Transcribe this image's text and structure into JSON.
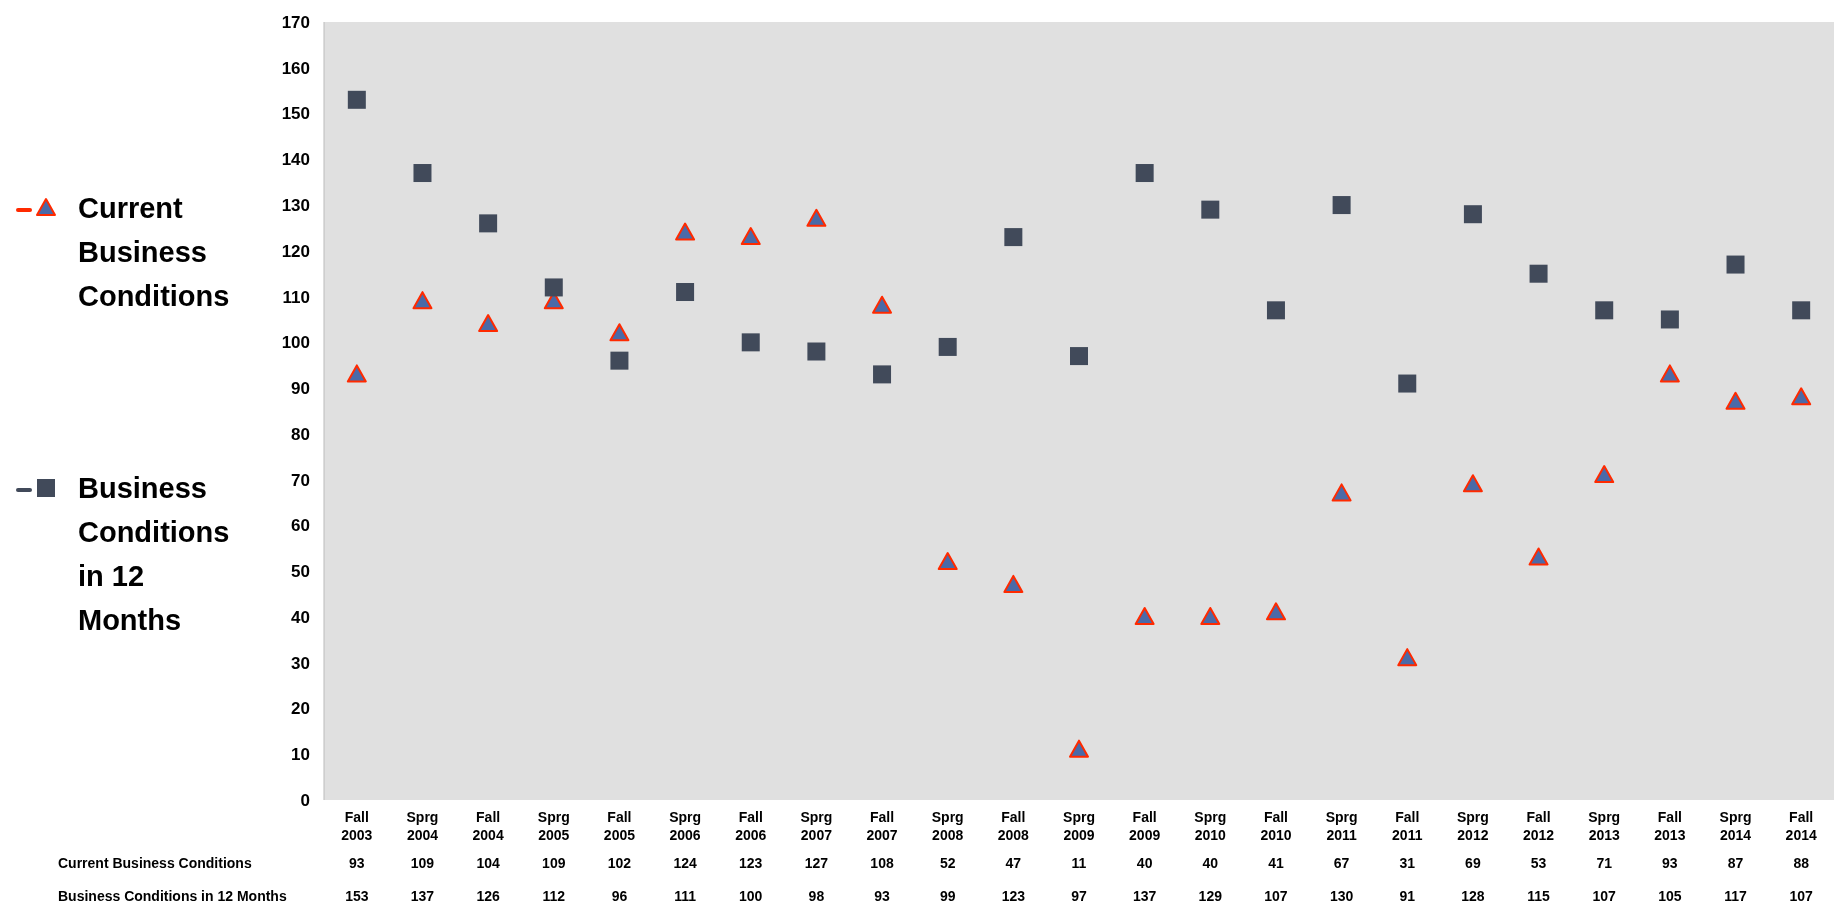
{
  "chart_data": {
    "type": "scatter",
    "categories": [
      "Fall 2003",
      "Sprg 2004",
      "Fall 2004",
      "Sprg 2005",
      "Fall 2005",
      "Sprg 2006",
      "Fall 2006",
      "Sprg 2007",
      "Fall 2007",
      "Sprg 2008",
      "Fall 2008",
      "Sprg 2009",
      "Fall 2009",
      "Sprg 2010",
      "Fall 2010",
      "Sprg 2011",
      "Fall 2011",
      "Sprg 2012",
      "Fall 2012",
      "Sprg 2013",
      "Fall 2013",
      "Sprg 2014",
      "Fall 2014"
    ],
    "series": [
      {
        "name": "Current Business Conditions",
        "color": "#4a6aa8",
        "marker": "triangle",
        "values": [
          93,
          109,
          104,
          109,
          102,
          124,
          123,
          127,
          108,
          52,
          47,
          11,
          40,
          40,
          41,
          67,
          31,
          69,
          53,
          71,
          93,
          87,
          88
        ]
      },
      {
        "name": "Business Conditions in 12 Months",
        "color": "#414a5a",
        "marker": "square",
        "values": [
          153,
          137,
          126,
          112,
          96,
          111,
          100,
          98,
          93,
          99,
          123,
          97,
          137,
          129,
          107,
          130,
          91,
          128,
          115,
          107,
          105,
          117,
          107
        ]
      }
    ],
    "ylim": [
      0,
      170
    ],
    "yticks": [
      0,
      10,
      20,
      30,
      40,
      50,
      60,
      70,
      80,
      90,
      100,
      110,
      120,
      130,
      140,
      150,
      160,
      170
    ],
    "grid": false,
    "legend": "left",
    "data_labels": true
  }
}
